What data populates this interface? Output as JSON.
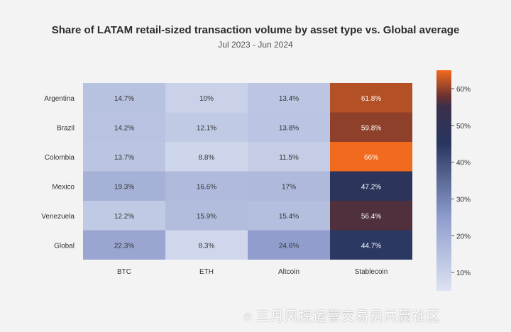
{
  "chart_data": {
    "type": "heatmap",
    "title": "Share of LATAM retail-sized transaction volume by asset type vs. Global average",
    "subtitle": "Jul 2023 - Jun 2024",
    "columns": [
      "BTC",
      "ETH",
      "Altcoin",
      "Stablecoin"
    ],
    "rows": [
      "Argentina",
      "Brazil",
      "Colombia",
      "Mexico",
      "Venezuela",
      "Global"
    ],
    "values": [
      [
        14.7,
        10,
        13.4,
        61.8
      ],
      [
        14.2,
        12.1,
        13.8,
        59.8
      ],
      [
        13.7,
        8.8,
        11.5,
        66
      ],
      [
        19.3,
        16.6,
        17,
        47.2
      ],
      [
        12.2,
        15.9,
        15.4,
        56.4
      ],
      [
        22.3,
        8.3,
        24.6,
        44.7
      ]
    ],
    "labels": [
      [
        "14.7%",
        "10%",
        "13.4%",
        "61.8%"
      ],
      [
        "14.2%",
        "12.1%",
        "13.8%",
        "59.8%"
      ],
      [
        "13.7%",
        "8.8%",
        "11.5%",
        "66%"
      ],
      [
        "19.3%",
        "16.6%",
        "17%",
        "47.2%"
      ],
      [
        "12.2%",
        "15.9%",
        "15.4%",
        "56.4%"
      ],
      [
        "22.3%",
        "8.3%",
        "24.6%",
        "44.7%"
      ]
    ],
    "colorbar": {
      "range": [
        5,
        65
      ],
      "ticks": [
        10,
        20,
        30,
        40,
        50,
        60
      ],
      "tick_labels": [
        "10%",
        "20%",
        "30%",
        "40%",
        "50%",
        "60%"
      ],
      "stops": [
        {
          "value": 5,
          "color": "#dde3f3"
        },
        {
          "value": 25,
          "color": "#8f9dcc"
        },
        {
          "value": 45,
          "color": "#283660"
        },
        {
          "value": 55,
          "color": "#3a2f4a"
        },
        {
          "value": 58,
          "color": "#6b3230"
        },
        {
          "value": 65,
          "color": "#f26a1e"
        }
      ]
    }
  },
  "watermark": "三月风控运营交易员共赢社区",
  "watermark_icon": "share-icon"
}
